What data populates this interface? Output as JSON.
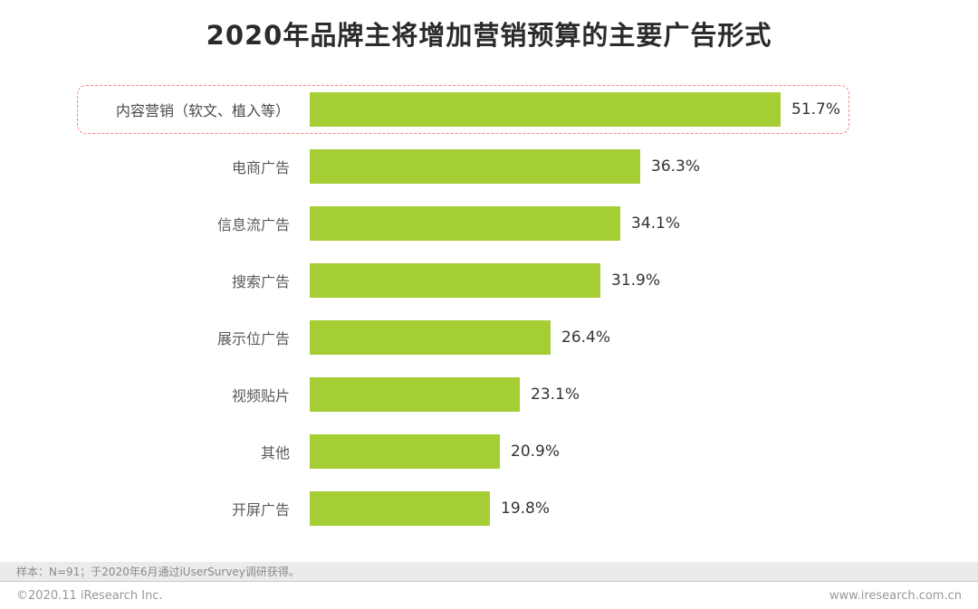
{
  "title": "2020年品牌主将增加营销预算的主要广告形式",
  "chart_data": {
    "type": "bar",
    "orientation": "horizontal",
    "title": "2020年品牌主将增加营销预算的主要广告形式",
    "categories": [
      "内容营销（软文、植入等）",
      "电商广告",
      "信息流广告",
      "搜索广告",
      "展示位广告",
      "视频贴片",
      "其他",
      "开屏广告"
    ],
    "values": [
      51.7,
      36.3,
      34.1,
      31.9,
      26.4,
      23.1,
      20.9,
      19.8
    ],
    "value_labels": [
      "51.7%",
      "36.3%",
      "34.1%",
      "31.9%",
      "26.4%",
      "23.1%",
      "20.9%",
      "19.8%"
    ],
    "highlighted_index": 0,
    "bar_color": "#a5cd34",
    "highlight_border_color": "#ff8080",
    "xlim": [
      0,
      55
    ],
    "grid": false,
    "legend": false
  },
  "footer": {
    "note": "样本：N=91；于2020年6月通过iUserSurvey调研获得。",
    "copyright": "©2020.11 iResearch Inc.",
    "website": "www.iresearch.com.cn"
  }
}
